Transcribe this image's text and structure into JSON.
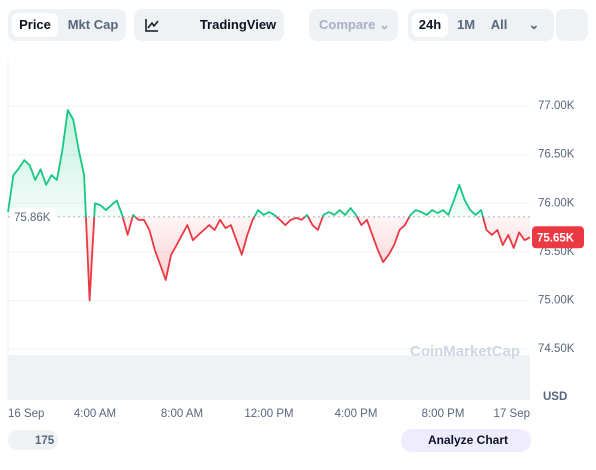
{
  "toolbar": {
    "price": "Price",
    "mkt_cap": "Mkt Cap",
    "tradingview": "TradingView",
    "compare": "Compare",
    "range_24h": "24h",
    "range_1m": "1M",
    "range_all": "All"
  },
  "footer": {
    "badge": "175",
    "analyze": "Analyze Chart"
  },
  "chart_data": {
    "type": "line",
    "values": [
      75910,
      76290,
      76360,
      76445,
      76390,
      76240,
      76350,
      76190,
      76290,
      76240,
      76550,
      76960,
      76860,
      76550,
      76290,
      75000,
      76000,
      75980,
      75930,
      75980,
      76030,
      75880,
      75675,
      75880,
      75830,
      75830,
      75725,
      75520,
      75365,
      75210,
      75470,
      75570,
      75675,
      75775,
      75620,
      75675,
      75725,
      75775,
      75725,
      75830,
      75745,
      75775,
      75620,
      75470,
      75675,
      75830,
      75930,
      75880,
      75910,
      75880,
      75830,
      75775,
      75830,
      75850,
      75830,
      75880,
      75775,
      75725,
      75880,
      75910,
      75880,
      75930,
      75880,
      75950,
      75880,
      75775,
      75830,
      75675,
      75520,
      75395,
      75470,
      75570,
      75725,
      75775,
      75880,
      75930,
      75910,
      75880,
      75930,
      75900,
      75930,
      75880,
      76030,
      76190,
      76030,
      75930,
      75880,
      75930,
      75725,
      75675,
      75725,
      75570,
      75675,
      75540,
      75700,
      75620,
      75650
    ],
    "xlim": [
      0,
      96
    ],
    "xticks": [
      {
        "value": 0,
        "label": "16 Sep"
      },
      {
        "value": 16,
        "label": "4:00 AM"
      },
      {
        "value": 32,
        "label": "8:00 AM"
      },
      {
        "value": 48,
        "label": "12:00 PM"
      },
      {
        "value": 64,
        "label": "4:00 PM"
      },
      {
        "value": 80,
        "label": "8:00 PM"
      },
      {
        "value": 96,
        "label": "17 Sep"
      }
    ],
    "ylim": [
      73975,
      77475
    ],
    "yticks": [
      {
        "value": 74500,
        "label": "74.50K"
      },
      {
        "value": 75000,
        "label": "75.00K"
      },
      {
        "value": 75500,
        "label": "75.50K"
      },
      {
        "value": 76000,
        "label": "76.00K"
      },
      {
        "value": 76500,
        "label": "76.50K"
      },
      {
        "value": 77000,
        "label": "77.00K"
      }
    ],
    "y_unit": "USD",
    "reference": {
      "value": 75860,
      "label": "75.86K"
    },
    "price_tag": {
      "value": 75650,
      "label": "75.65K"
    },
    "up_color": "#16c784",
    "down_color": "#ea3943",
    "grid": true,
    "watermark": "CoinMarketCap"
  }
}
